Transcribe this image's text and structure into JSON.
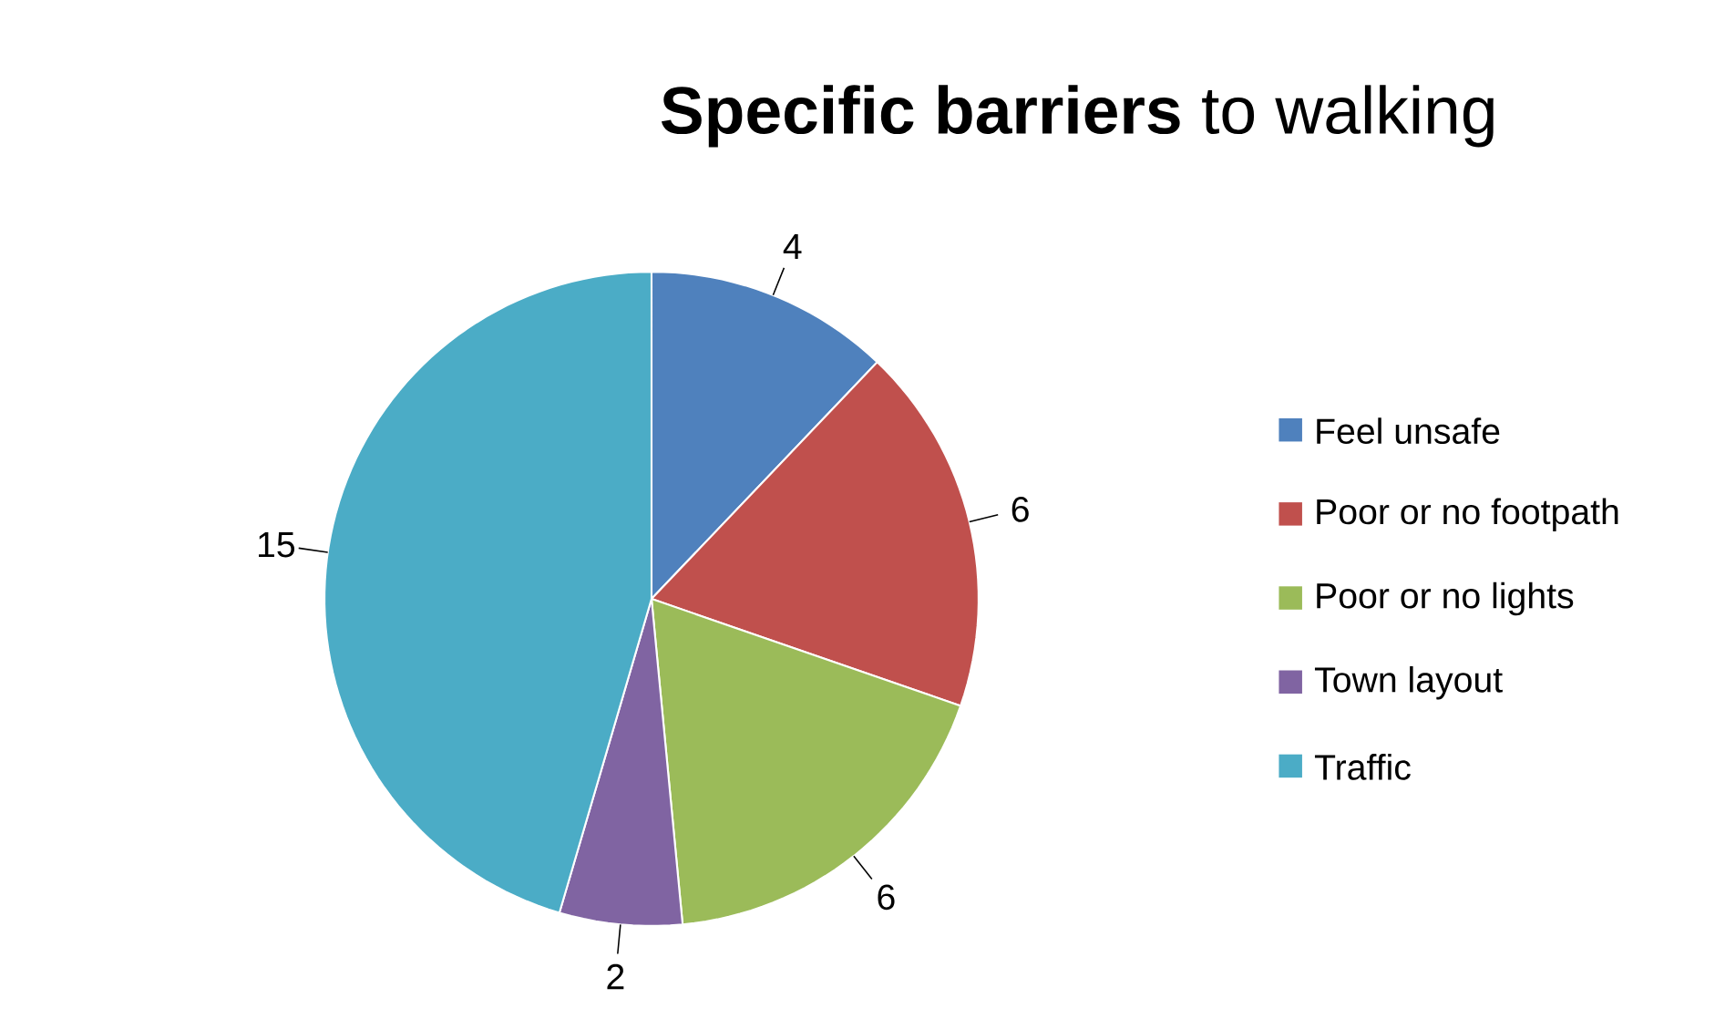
{
  "chart_data": {
    "type": "pie",
    "title": "**Specific barriers** to walking",
    "categories": [
      "Feel unsafe",
      "Poor or no footpath",
      "Poor or no lights",
      "Town layout",
      "Traffic"
    ],
    "values": [
      4,
      6,
      6,
      2,
      15
    ],
    "colors": [
      "#4f81bd",
      "#c0504d",
      "#9bbb59",
      "#8064a2",
      "#4bacc6"
    ],
    "data_labels": true,
    "legend": "right"
  }
}
